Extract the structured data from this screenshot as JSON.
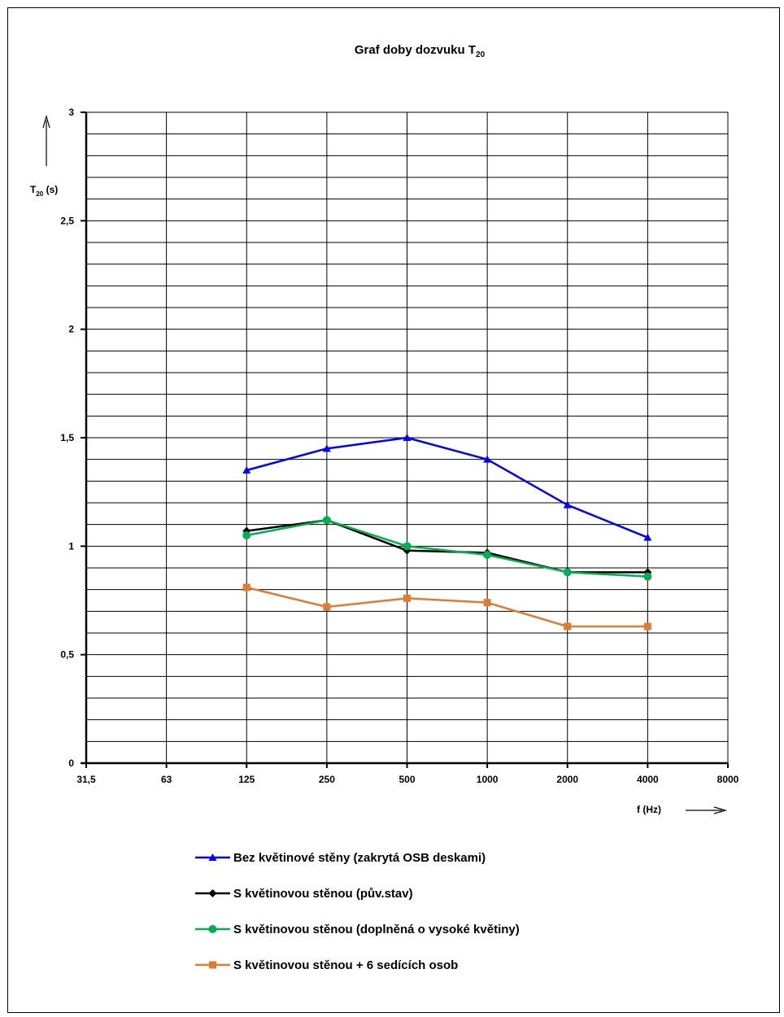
{
  "chart_data": {
    "type": "line",
    "title": "Graf doby dozvuku T",
    "title_subscript": "20",
    "ylabel": "T",
    "ylabel_subscript": "20",
    "ylabel_unit": " (s)",
    "xlabel": "f (Hz)",
    "x_scale": "log2",
    "categories": [
      "31,5",
      "63",
      "125",
      "250",
      "500",
      "1000",
      "2000",
      "4000",
      "8000"
    ],
    "y_ticks": [
      "0",
      "0,5",
      "1",
      "1,5",
      "2",
      "2,5",
      "3"
    ],
    "y_tick_values": [
      0,
      0.5,
      1,
      1.5,
      2,
      2.5,
      3
    ],
    "ylim": [
      0,
      3
    ],
    "grid": true,
    "legend_position": "bottom",
    "series": [
      {
        "name": "Bez květinové stěny (zakrytá OSB deskami)",
        "color": "#0000ff",
        "marker": "triangle",
        "x": [
          "125",
          "250",
          "500",
          "1000",
          "2000",
          "4000"
        ],
        "values": [
          1.35,
          1.45,
          1.5,
          1.4,
          1.19,
          1.04
        ]
      },
      {
        "name": "S květinovou stěnou (pův.stav)",
        "color": "#000000",
        "marker": "diamond",
        "x": [
          "125",
          "250",
          "500",
          "1000",
          "2000",
          "4000"
        ],
        "values": [
          1.07,
          1.12,
          0.98,
          0.97,
          0.88,
          0.88
        ]
      },
      {
        "name": "S květinovou stěnou (doplněná o vysoké květiny)",
        "color": "#00b050",
        "marker": "circle",
        "x": [
          "125",
          "250",
          "500",
          "1000",
          "2000",
          "4000"
        ],
        "values": [
          1.05,
          1.12,
          1.0,
          0.96,
          0.88,
          0.86
        ]
      },
      {
        "name": "S květinovou stěnou + 6 sedících osob",
        "color": "#e07c30",
        "marker": "square",
        "x": [
          "125",
          "250",
          "500",
          "1000",
          "2000",
          "4000"
        ],
        "values": [
          0.81,
          0.72,
          0.76,
          0.74,
          0.63,
          0.63
        ]
      }
    ]
  }
}
